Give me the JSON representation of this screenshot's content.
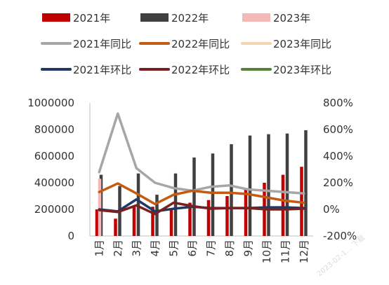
{
  "chart_data": {
    "type": "bar",
    "categories": [
      "1月",
      "2月",
      "3月",
      "4月",
      "5月",
      "6月",
      "7月",
      "8月",
      "9月",
      "10月",
      "11月",
      "12月"
    ],
    "bar_series": [
      {
        "name": "2021年",
        "color": "#C00000",
        "values": [
          200000,
          130000,
          230000,
          220000,
          200000,
          250000,
          270000,
          300000,
          350000,
          400000,
          460000,
          520000
        ]
      },
      {
        "name": "2022年",
        "color": "#404040",
        "values": [
          460000,
          375000,
          470000,
          310000,
          470000,
          590000,
          620000,
          690000,
          755000,
          765000,
          770000,
          795000
        ]
      },
      {
        "name": "2023年",
        "color": "#F4B8B8",
        "values": [
          430000,
          null,
          null,
          null,
          null,
          null,
          null,
          null,
          null,
          null,
          null,
          null
        ]
      }
    ],
    "line_series": [
      {
        "name": "2021年同比",
        "color": "#A6A6A6",
        "values": [
          280,
          720,
          310,
          200,
          160,
          140,
          170,
          180,
          150,
          140,
          130,
          120
        ]
      },
      {
        "name": "2022年同比",
        "color": "#C55A11",
        "values": [
          130,
          195,
          120,
          40,
          110,
          140,
          125,
          125,
          115,
          90,
          65,
          50
        ]
      },
      {
        "name": "2023年同比",
        "color": "#F0D5B0",
        "values": [
          -5,
          null,
          null,
          null,
          null,
          null,
          null,
          null,
          null,
          null,
          null,
          null
        ]
      },
      {
        "name": "2021年环比",
        "color": "#1F3864",
        "values": [
          0,
          -15,
          75,
          -15,
          5,
          20,
          10,
          10,
          10,
          15,
          15,
          10
        ]
      },
      {
        "name": "2022年环比",
        "color": "#7B2020",
        "values": [
          -5,
          -20,
          30,
          -35,
          50,
          25,
          5,
          10,
          10,
          0,
          0,
          5
        ]
      },
      {
        "name": "2023年环比",
        "color": "#548235",
        "values": [
          null,
          null,
          null,
          null,
          null,
          null,
          null,
          null,
          null,
          null,
          null,
          null
        ]
      }
    ],
    "y_left": {
      "min": 0,
      "max": 1000000,
      "ticks": [
        "0",
        "200000",
        "400000",
        "600000",
        "800000",
        "1000000"
      ]
    },
    "y_right": {
      "min": -200,
      "max": 800,
      "ticks": [
        "-200%",
        "0%",
        "200%",
        "400%",
        "600%",
        "800%"
      ]
    },
    "grid": false,
    "legend_position": "top"
  }
}
